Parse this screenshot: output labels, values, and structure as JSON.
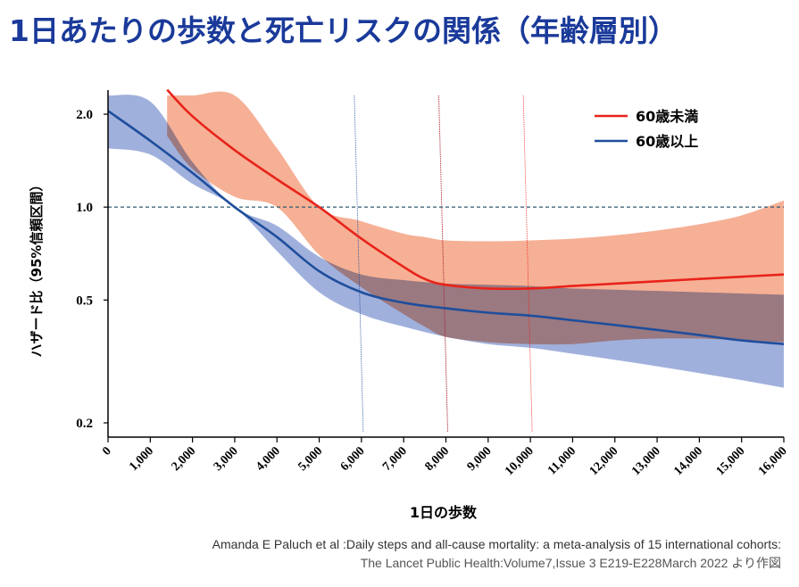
{
  "title": "1日あたりの歩数と死亡リスクの関係（年齢層別）",
  "source": {
    "line1": "Amanda E Paluch  et al :Daily steps and all-cause mortality: a meta-analysis of 15 international cohorts:",
    "line2": "The Lancet Public Health:Volume7,Issue 3 E219-E228March 2022 より作図"
  },
  "colors": {
    "under60_line": "#e8231a",
    "under60_band": "#f4a283",
    "over60_line": "#1f4e9c",
    "over60_band": "#7b92cf",
    "reference_line": "#2e5a6e",
    "title": "#1a3a9a"
  },
  "chart_data": {
    "type": "line",
    "title": "",
    "xlabel": "1日の歩数",
    "ylabel": "ハザード比（95%信頼区間）",
    "y_scale": "log",
    "xlim": [
      0,
      16000
    ],
    "ylim": [
      0.18,
      2.4
    ],
    "x_ticks": [
      0,
      1000,
      2000,
      3000,
      4000,
      5000,
      6000,
      7000,
      8000,
      9000,
      10000,
      11000,
      12000,
      13000,
      14000,
      15000,
      16000
    ],
    "x_tick_labels": [
      "0",
      "1,000",
      "2,000",
      "3,000",
      "4,000",
      "5,000",
      "6,000",
      "7,000",
      "8,000",
      "9,000",
      "10,000",
      "11,000",
      "12,000",
      "13,000",
      "14,000",
      "15,000",
      "16,000"
    ],
    "y_ticks": [
      0.2,
      0.5,
      1.0,
      2.0
    ],
    "y_tick_labels": [
      "0.2",
      "0.5",
      "1.0",
      "2.0"
    ],
    "reference_line": 1.0,
    "legend_position": "top-right",
    "vertical_markers": [
      {
        "x": 6000,
        "color": "#1f4e9c"
      },
      {
        "x": 8000,
        "color": "#1f4e9c"
      },
      {
        "x": 8000,
        "color": "#e8231a"
      },
      {
        "x": 10000,
        "color": "#e8231a"
      }
    ],
    "series": [
      {
        "name": "60歳未満",
        "color": "#e8231a",
        "band_color": "#f4a283",
        "x": [
          1400,
          2000,
          3000,
          4000,
          5000,
          6000,
          7000,
          7500,
          8000,
          9000,
          10000,
          11000,
          12000,
          13000,
          14000,
          15000,
          16000
        ],
        "y": [
          2.4,
          1.97,
          1.53,
          1.23,
          1.0,
          0.79,
          0.64,
          0.585,
          0.56,
          0.545,
          0.545,
          0.555,
          0.565,
          0.575,
          0.585,
          0.595,
          0.605
        ],
        "lower": [
          1.7,
          1.33,
          1.08,
          1.0,
          0.7,
          0.55,
          0.45,
          0.41,
          0.38,
          0.365,
          0.36,
          0.36,
          0.37,
          0.375,
          0.375,
          0.37,
          0.365
        ],
        "upper": [
          2.4,
          2.4,
          2.4,
          1.55,
          1.0,
          0.9,
          0.82,
          0.8,
          0.78,
          0.775,
          0.78,
          0.79,
          0.81,
          0.84,
          0.88,
          0.94,
          1.05
        ]
      },
      {
        "name": "60歳以上",
        "color": "#1f4e9c",
        "band_color": "#7b92cf",
        "x": [
          0,
          1000,
          2000,
          3000,
          4000,
          5000,
          6000,
          7000,
          8000,
          9000,
          10000,
          11000,
          12000,
          13000,
          14000,
          15000,
          16000
        ],
        "y": [
          2.05,
          1.64,
          1.29,
          1.0,
          0.8,
          0.62,
          0.53,
          0.49,
          0.47,
          0.455,
          0.445,
          0.43,
          0.415,
          0.4,
          0.385,
          0.37,
          0.36
        ],
        "lower": [
          1.55,
          1.48,
          1.19,
          1.0,
          0.72,
          0.53,
          0.45,
          0.41,
          0.38,
          0.36,
          0.35,
          0.335,
          0.32,
          0.305,
          0.29,
          0.275,
          0.26
        ],
        "upper": [
          2.4,
          2.2,
          1.4,
          1.0,
          0.87,
          0.69,
          0.605,
          0.58,
          0.565,
          0.56,
          0.555,
          0.545,
          0.54,
          0.535,
          0.53,
          0.525,
          0.52
        ]
      }
    ]
  }
}
